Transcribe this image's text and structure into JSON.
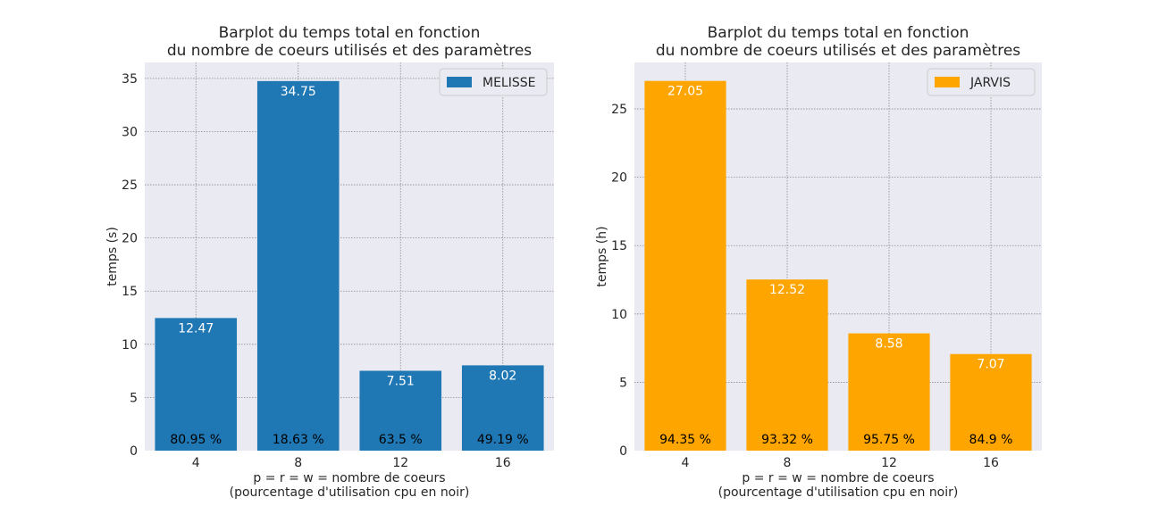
{
  "chart_data": [
    {
      "type": "bar",
      "title": "Barplot du temps total en fonction\ndu nombre de coeurs utilisés et des paramètres",
      "xlabel": "p = r = w = nombre de coeurs\n(pourcentage d'utilisation cpu en noir)",
      "ylabel": "temps (s)",
      "categories": [
        "4",
        "8",
        "12",
        "16"
      ],
      "series": [
        {
          "name": "MELISSE",
          "color": "#1f77b4",
          "values": [
            12.47,
            34.75,
            7.51,
            8.02
          ],
          "value_labels": [
            "12.47",
            "34.75",
            "7.51",
            "8.02"
          ],
          "cpu_labels": [
            "80.95 %",
            "18.63 %",
            "63.5 %",
            "49.19 %"
          ]
        }
      ],
      "ylim": [
        0,
        36.5
      ],
      "yticks": [
        0,
        5,
        10,
        15,
        20,
        25,
        30,
        35
      ],
      "grid": true,
      "legend_position": "top-right"
    },
    {
      "type": "bar",
      "title": "Barplot du temps total en fonction\ndu nombre de coeurs utilisés et des paramètres",
      "xlabel": "p = r = w = nombre de coeurs\n(pourcentage d'utilisation cpu en noir)",
      "ylabel": "temps (h)",
      "categories": [
        "4",
        "8",
        "12",
        "16"
      ],
      "series": [
        {
          "name": "JARVIS",
          "color": "#ffa500",
          "values": [
            27.05,
            12.52,
            8.58,
            7.07
          ],
          "value_labels": [
            "27.05",
            "12.52",
            "8.58",
            "7.07"
          ],
          "cpu_labels": [
            "94.35 %",
            "93.32 %",
            "95.75 %",
            "84.9 %"
          ]
        }
      ],
      "ylim": [
        0,
        28.4
      ],
      "yticks": [
        0,
        5,
        10,
        15,
        20,
        25
      ],
      "grid": true,
      "legend_position": "top-right"
    }
  ],
  "colors": {
    "plot_background": "#eaeaf2",
    "grid": "#8c8c8c",
    "value_label": "#ffffff",
    "cpu_label": "#000000"
  }
}
